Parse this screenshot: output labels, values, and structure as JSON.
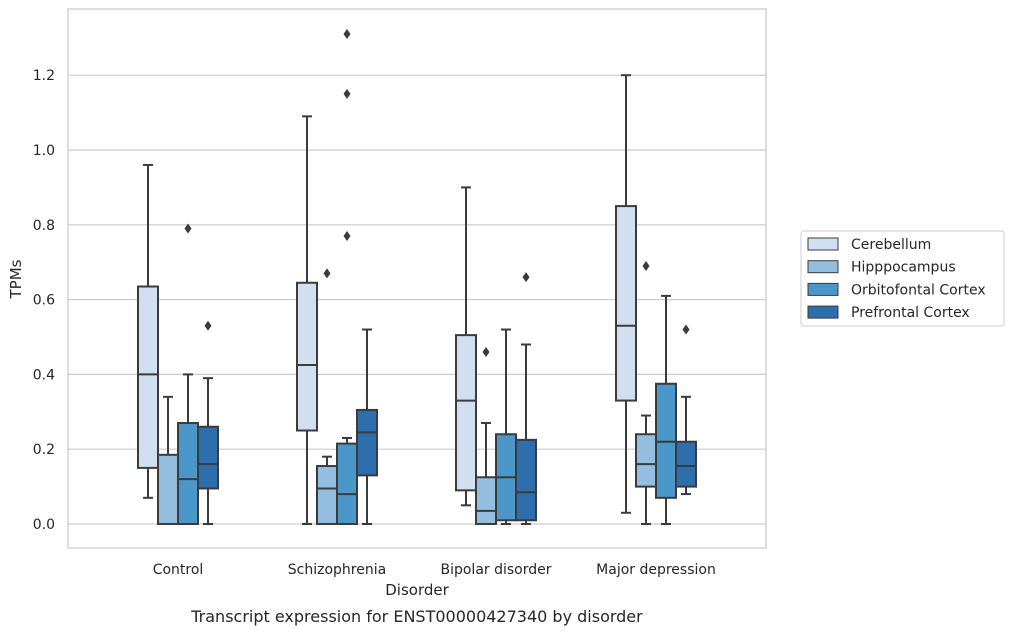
{
  "chart_data": {
    "type": "boxplot",
    "xlabel": "Disorder",
    "ylabel": "TPMs",
    "caption": "Transcript expression for ENST00000427340 by disorder",
    "ylim": [
      -0.065,
      1.375
    ],
    "yticks": [
      0.0,
      0.2,
      0.4,
      0.6,
      0.8,
      1.0,
      1.2
    ],
    "ytick_labels": [
      "0.0",
      "0.2",
      "0.4",
      "0.6",
      "0.8",
      "1.0",
      "1.2"
    ],
    "grid": "horizontal",
    "legend_position": "right",
    "categories": [
      "Control",
      "Schizophrenia",
      "Bipolar disorder",
      "Major depression"
    ],
    "series": [
      {
        "name": "Cerebellum",
        "color": "#d0e0f1",
        "boxes": [
          {
            "whislo": 0.07,
            "q1": 0.15,
            "med": 0.4,
            "q3": 0.635,
            "whishi": 0.96,
            "fliers": []
          },
          {
            "whislo": 0.0,
            "q1": 0.25,
            "med": 0.425,
            "q3": 0.645,
            "whishi": 1.09,
            "fliers": []
          },
          {
            "whislo": 0.05,
            "q1": 0.09,
            "med": 0.33,
            "q3": 0.505,
            "whishi": 0.9,
            "fliers": []
          },
          {
            "whislo": 0.03,
            "q1": 0.33,
            "med": 0.53,
            "q3": 0.85,
            "whishi": 1.2,
            "fliers": []
          }
        ]
      },
      {
        "name": "Hipppocampus",
        "color": "#93bedf",
        "boxes": [
          {
            "whislo": 0.0,
            "q1": 0.0,
            "med": 0.0,
            "q3": 0.185,
            "whishi": 0.34,
            "fliers": []
          },
          {
            "whislo": 0.0,
            "q1": 0.0,
            "med": 0.095,
            "q3": 0.155,
            "whishi": 0.18,
            "fliers": [
              0.67
            ]
          },
          {
            "whislo": 0.0,
            "q1": 0.0,
            "med": 0.035,
            "q3": 0.125,
            "whishi": 0.27,
            "fliers": [
              0.46
            ]
          },
          {
            "whislo": 0.0,
            "q1": 0.1,
            "med": 0.16,
            "q3": 0.24,
            "whishi": 0.29,
            "fliers": [
              0.69
            ]
          }
        ]
      },
      {
        "name": "Orbitofontal Cortex",
        "color": "#4b97c9",
        "boxes": [
          {
            "whislo": 0.0,
            "q1": 0.0,
            "med": 0.12,
            "q3": 0.27,
            "whishi": 0.4,
            "fliers": [
              0.79
            ]
          },
          {
            "whislo": 0.0,
            "q1": 0.0,
            "med": 0.08,
            "q3": 0.215,
            "whishi": 0.23,
            "fliers": [
              0.77,
              1.15,
              1.31
            ]
          },
          {
            "whislo": 0.0,
            "q1": 0.01,
            "med": 0.125,
            "q3": 0.24,
            "whishi": 0.52,
            "fliers": []
          },
          {
            "whislo": 0.0,
            "q1": 0.07,
            "med": 0.22,
            "q3": 0.375,
            "whishi": 0.61,
            "fliers": []
          }
        ]
      },
      {
        "name": "Prefrontal Cortex",
        "color": "#2d6fac",
        "boxes": [
          {
            "whislo": 0.0,
            "q1": 0.095,
            "med": 0.16,
            "q3": 0.26,
            "whishi": 0.39,
            "fliers": [
              0.53
            ]
          },
          {
            "whislo": 0.0,
            "q1": 0.13,
            "med": 0.245,
            "q3": 0.305,
            "whishi": 0.52,
            "fliers": []
          },
          {
            "whislo": 0.0,
            "q1": 0.01,
            "med": 0.085,
            "q3": 0.225,
            "whishi": 0.48,
            "fliers": [
              0.66
            ]
          },
          {
            "whislo": 0.08,
            "q1": 0.1,
            "med": 0.155,
            "q3": 0.22,
            "whishi": 0.34,
            "fliers": [
              0.52
            ]
          }
        ]
      }
    ]
  }
}
